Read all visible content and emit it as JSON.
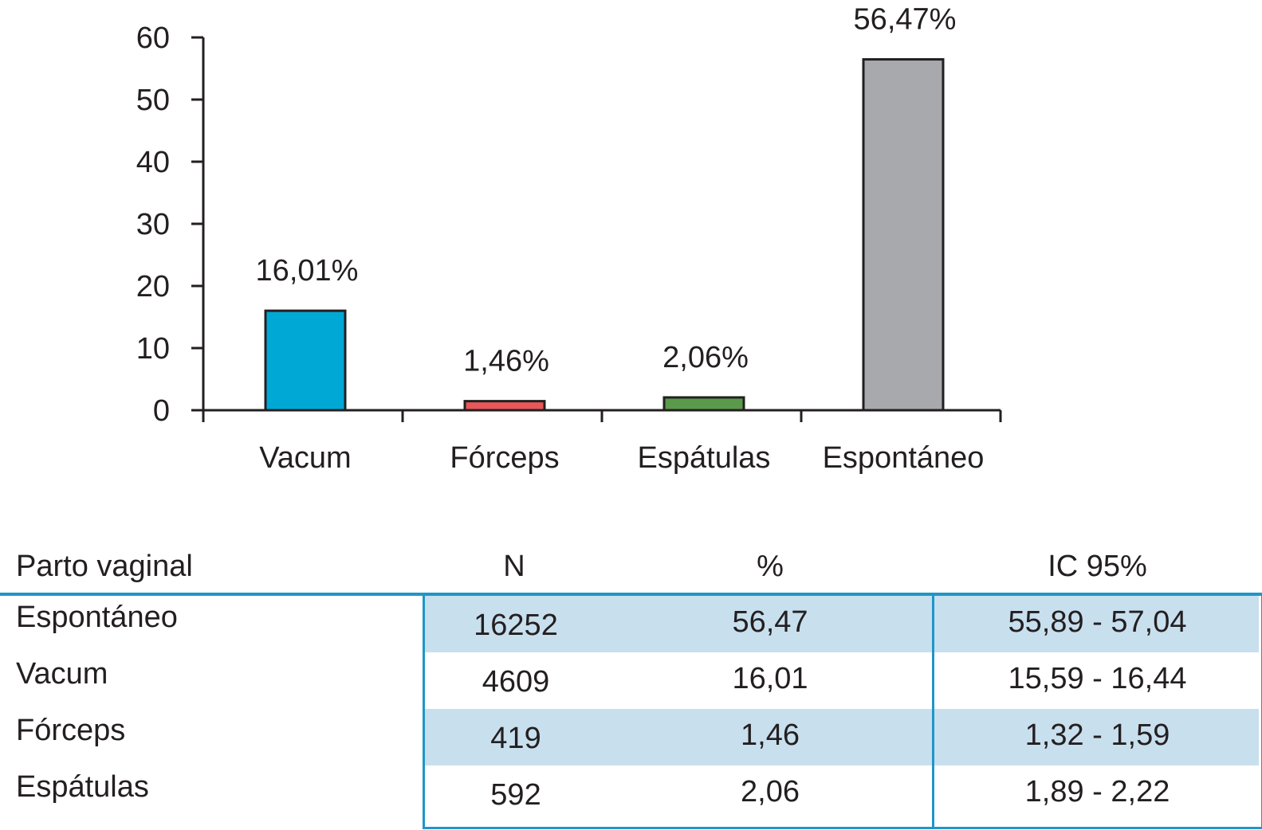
{
  "chart_data": {
    "type": "bar",
    "categories": [
      "Vacum",
      "Fórceps",
      "Espátulas",
      "Espontáneo"
    ],
    "values": [
      16.01,
      1.46,
      2.06,
      56.47
    ],
    "data_labels": [
      "16,01%",
      "1,46%",
      "2,06%",
      "56,47%"
    ],
    "colors": [
      "#00a8d6",
      "#e8575a",
      "#5a9a4a",
      "#a7a9ac"
    ],
    "ylim": [
      0,
      60
    ],
    "yticks": [
      "0",
      "10",
      "20",
      "30",
      "40",
      "50",
      "60"
    ],
    "ytick_values": [
      0,
      10,
      20,
      30,
      40,
      50,
      60
    ],
    "grid": false,
    "title": "",
    "xlabel": "",
    "ylabel": ""
  },
  "table": {
    "headers": [
      "Parto vaginal",
      "N",
      "%",
      "IC 95%"
    ],
    "rows": [
      {
        "label": "Espontáneo",
        "n": "16252",
        "pct": "56,47",
        "ci": "55,89 - 57,04"
      },
      {
        "label": "Vacum",
        "n": "4609",
        "pct": "16,01",
        "ci": "15,59 - 16,44"
      },
      {
        "label": "Fórceps",
        "n": "419",
        "pct": "1,46",
        "ci": "1,32 - 1,59"
      },
      {
        "label": "Espátulas",
        "n": "592",
        "pct": "2,06",
        "ci": "1,89 - 2,22"
      }
    ],
    "accent_color": "#1e96c8",
    "shade_color": "#c8dfee"
  }
}
